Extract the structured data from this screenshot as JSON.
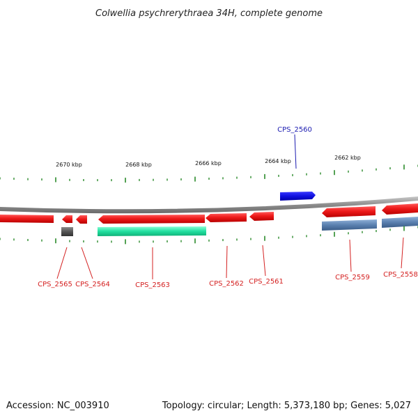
{
  "title": "Colwellia psychrerythraea 34H, complete genome",
  "footer": {
    "accession": "Accession: NC_003910",
    "summary": "Topology: circular; Length: 5,373,180 bp; Genes: 5,027"
  },
  "scale_labels": [
    "2670 kbp",
    "2668 kbp",
    "2666 kbp",
    "2664 kbp",
    "2662 kbp"
  ],
  "genes": [
    {
      "name": "CPS_2565",
      "color": "#e8322e"
    },
    {
      "name": "CPS_2564",
      "color": "#e8322e"
    },
    {
      "name": "CPS_2563",
      "color": "#e8322e"
    },
    {
      "name": "CPS_2562",
      "color": "#e8322e"
    },
    {
      "name": "CPS_2561",
      "color": "#e8322e"
    },
    {
      "name": "CPS_2560",
      "color": "#1f1fd6"
    },
    {
      "name": "CPS_2559",
      "color": "#e8322e"
    },
    {
      "name": "CPS_2558",
      "color": "#e8322e"
    }
  ],
  "colors": {
    "forward_gene": "#1010e0",
    "reverse_gene": "#e82020",
    "rna_feature": "#22e0a0",
    "pseudo_feature": "#5a80b0",
    "backbone": "#8c8c8c",
    "tick": "#2a8a2a"
  }
}
